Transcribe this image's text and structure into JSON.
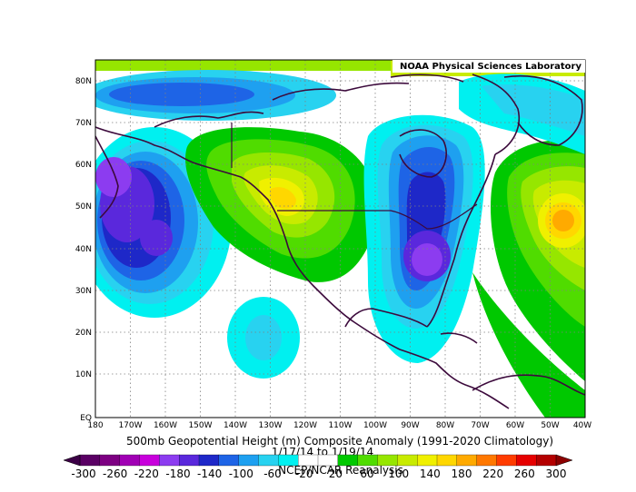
{
  "credit": "NOAA Physical Sciences Laboratory",
  "map": {
    "lat_ticks": [
      "80N",
      "70N",
      "60N",
      "50N",
      "40N",
      "30N",
      "20N",
      "10N",
      "EQ"
    ],
    "lon_ticks": [
      "180",
      "170W",
      "160W",
      "150W",
      "140W",
      "130W",
      "120W",
      "110W",
      "100W",
      "90W",
      "80W",
      "70W",
      "60W",
      "50W",
      "40W"
    ]
  },
  "caption": {
    "line1": "500mb Geopotential Height (m) Composite Anomaly (1991-2020 Climatology)",
    "line2": "1/17/14  to 1/19/14",
    "line3": "NCEP/NCAR Reanalysis"
  },
  "colorbar": {
    "labels": [
      "-300",
      "-260",
      "-220",
      "-180",
      "-140",
      "-100",
      "-60",
      "-20",
      "20",
      "60",
      "100",
      "140",
      "180",
      "220",
      "260",
      "300"
    ],
    "colors": [
      "#5a0064",
      "#7d0082",
      "#a000b4",
      "#c800dc",
      "#8c3cf0",
      "#5a28dc",
      "#1e28c8",
      "#1e64e6",
      "#1ea0f0",
      "#28d2f0",
      "#00f0f0",
      "#ffffff",
      "#ffffff",
      "#00c800",
      "#50dc00",
      "#96e600",
      "#c8eb00",
      "#f0f000",
      "#ffd700",
      "#ffaa00",
      "#ff7800",
      "#ff3c00",
      "#e60000",
      "#b40000"
    ],
    "under_color": "#3c0046",
    "over_color": "#8c0000"
  }
}
